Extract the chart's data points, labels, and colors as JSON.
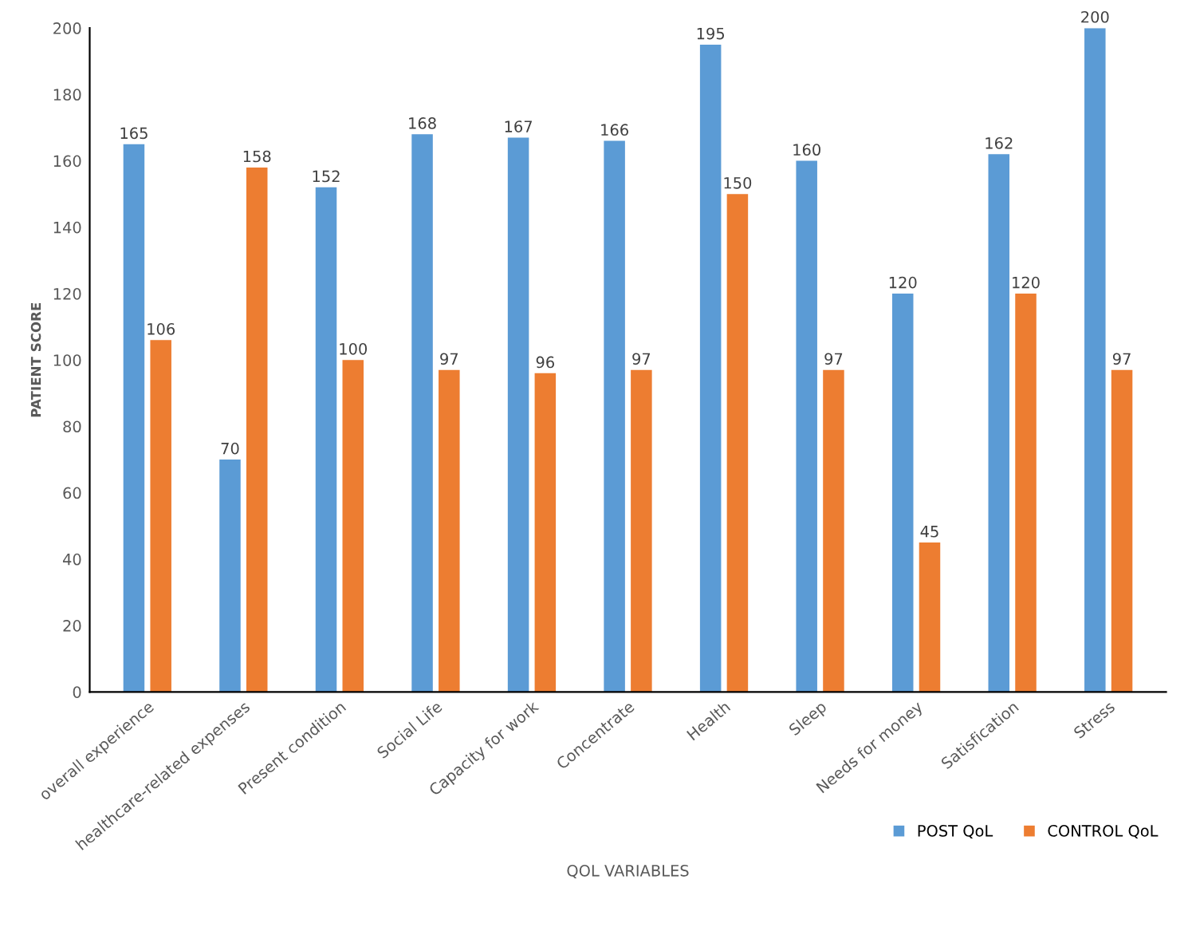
{
  "chart_data": {
    "type": "bar",
    "xlabel": "QOL VARIABLES",
    "ylabel": "PATIENT SCORE",
    "categories": [
      "overall experience",
      "healthcare-related expenses",
      "Present condition",
      "Social Life",
      "Capacity for work",
      "Concentrate",
      "Health",
      "Sleep",
      "Needs for money",
      "Satisfication",
      "Stress"
    ],
    "series": [
      {
        "name": "POST QoL",
        "color": "#5b9bd5",
        "values": [
          165,
          70,
          152,
          168,
          167,
          166,
          195,
          160,
          120,
          162,
          200
        ]
      },
      {
        "name": "CONTROL QoL",
        "color": "#ed7d31",
        "values": [
          106,
          158,
          100,
          97,
          96,
          97,
          150,
          97,
          45,
          120,
          97
        ]
      }
    ],
    "ylim": [
      0,
      200
    ],
    "yticks": [
      0,
      20,
      40,
      60,
      80,
      100,
      120,
      140,
      160,
      180,
      200
    ],
    "data_labels": true,
    "grid": false,
    "legend": "bottom right"
  }
}
